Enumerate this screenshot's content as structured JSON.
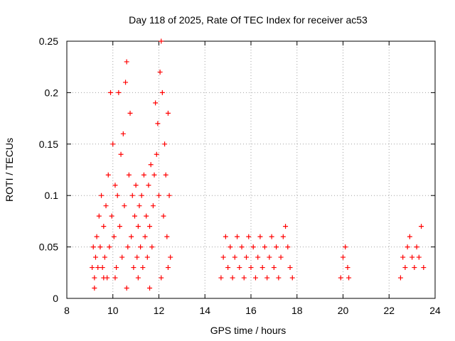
{
  "chart_data": {
    "type": "scatter",
    "title": "Day 118 of 2025, Rate Of TEC Index for receiver ac53",
    "xlabel": "GPS time / hours",
    "ylabel": "ROTI / TECUs",
    "xlim": [
      8,
      24
    ],
    "ylim": [
      0,
      0.25
    ],
    "xticks": [
      "8",
      "10",
      "12",
      "14",
      "16",
      "18",
      "20",
      "22",
      "24"
    ],
    "yticks": [
      "0",
      "0.05",
      "0.1",
      "0.15",
      "0.2",
      "0.25"
    ],
    "grid": true,
    "marker": "+",
    "color": "#ff0000",
    "series": [
      {
        "points": [
          [
            9.1,
            0.03
          ],
          [
            9.15,
            0.05
          ],
          [
            9.2,
            0.02
          ],
          [
            9.25,
            0.04
          ],
          [
            9.3,
            0.06
          ],
          [
            9.35,
            0.03
          ],
          [
            9.4,
            0.08
          ],
          [
            9.45,
            0.05
          ],
          [
            9.5,
            0.1
          ],
          [
            9.55,
            0.03
          ],
          [
            9.6,
            0.07
          ],
          [
            9.65,
            0.04
          ],
          [
            9.7,
            0.09
          ],
          [
            9.75,
            0.02
          ],
          [
            9.8,
            0.12
          ],
          [
            9.85,
            0.05
          ],
          [
            9.9,
            0.2
          ],
          [
            9.95,
            0.08
          ],
          [
            10.0,
            0.15
          ],
          [
            10.05,
            0.06
          ],
          [
            10.1,
            0.11
          ],
          [
            10.15,
            0.03
          ],
          [
            10.2,
            0.1
          ],
          [
            10.25,
            0.2
          ],
          [
            10.3,
            0.07
          ],
          [
            10.35,
            0.14
          ],
          [
            10.4,
            0.04
          ],
          [
            10.45,
            0.16
          ],
          [
            10.5,
            0.09
          ],
          [
            10.55,
            0.21
          ],
          [
            10.6,
            0.23
          ],
          [
            10.65,
            0.05
          ],
          [
            10.7,
            0.12
          ],
          [
            10.75,
            0.18
          ],
          [
            10.8,
            0.06
          ],
          [
            10.85,
            0.1
          ],
          [
            10.9,
            0.03
          ],
          [
            10.95,
            0.08
          ],
          [
            11.0,
            0.11
          ],
          [
            11.05,
            0.04
          ],
          [
            11.1,
            0.07
          ],
          [
            11.15,
            0.09
          ],
          [
            11.2,
            0.05
          ],
          [
            11.25,
            0.1
          ],
          [
            11.3,
            0.03
          ],
          [
            11.35,
            0.12
          ],
          [
            11.4,
            0.06
          ],
          [
            11.45,
            0.08
          ],
          [
            11.5,
            0.04
          ],
          [
            11.55,
            0.11
          ],
          [
            11.6,
            0.07
          ],
          [
            11.65,
            0.13
          ],
          [
            11.7,
            0.05
          ],
          [
            11.75,
            0.09
          ],
          [
            11.8,
            0.12
          ],
          [
            11.85,
            0.19
          ],
          [
            11.9,
            0.14
          ],
          [
            11.95,
            0.17
          ],
          [
            12.0,
            0.1
          ],
          [
            12.05,
            0.22
          ],
          [
            12.1,
            0.25
          ],
          [
            12.15,
            0.2
          ],
          [
            12.2,
            0.08
          ],
          [
            12.25,
            0.15
          ],
          [
            12.3,
            0.12
          ],
          [
            12.35,
            0.06
          ],
          [
            12.4,
            0.18
          ],
          [
            12.45,
            0.1
          ],
          [
            12.5,
            0.04
          ],
          [
            9.2,
            0.01
          ],
          [
            9.6,
            0.02
          ],
          [
            10.1,
            0.02
          ],
          [
            10.6,
            0.01
          ],
          [
            11.1,
            0.02
          ],
          [
            11.6,
            0.01
          ],
          [
            12.1,
            0.02
          ],
          [
            12.4,
            0.03
          ],
          [
            14.7,
            0.02
          ],
          [
            14.8,
            0.04
          ],
          [
            14.9,
            0.06
          ],
          [
            15.0,
            0.03
          ],
          [
            15.1,
            0.05
          ],
          [
            15.2,
            0.02
          ],
          [
            15.3,
            0.04
          ],
          [
            15.4,
            0.06
          ],
          [
            15.5,
            0.03
          ],
          [
            15.6,
            0.05
          ],
          [
            15.7,
            0.02
          ],
          [
            15.8,
            0.04
          ],
          [
            15.9,
            0.06
          ],
          [
            16.0,
            0.03
          ],
          [
            16.1,
            0.05
          ],
          [
            16.2,
            0.02
          ],
          [
            16.3,
            0.04
          ],
          [
            16.4,
            0.06
          ],
          [
            16.5,
            0.03
          ],
          [
            16.6,
            0.05
          ],
          [
            16.7,
            0.02
          ],
          [
            16.8,
            0.04
          ],
          [
            16.9,
            0.06
          ],
          [
            17.0,
            0.03
          ],
          [
            17.1,
            0.05
          ],
          [
            17.2,
            0.02
          ],
          [
            17.3,
            0.04
          ],
          [
            17.4,
            0.06
          ],
          [
            17.5,
            0.07
          ],
          [
            17.6,
            0.05
          ],
          [
            17.7,
            0.03
          ],
          [
            17.8,
            0.02
          ],
          [
            19.9,
            0.02
          ],
          [
            20.0,
            0.04
          ],
          [
            20.1,
            0.05
          ],
          [
            20.2,
            0.03
          ],
          [
            20.25,
            0.02
          ],
          [
            22.5,
            0.02
          ],
          [
            22.6,
            0.04
          ],
          [
            22.7,
            0.03
          ],
          [
            22.8,
            0.05
          ],
          [
            22.9,
            0.06
          ],
          [
            23.0,
            0.04
          ],
          [
            23.1,
            0.03
          ],
          [
            23.2,
            0.05
          ],
          [
            23.3,
            0.04
          ],
          [
            23.4,
            0.07
          ],
          [
            23.5,
            0.03
          ]
        ]
      }
    ]
  }
}
